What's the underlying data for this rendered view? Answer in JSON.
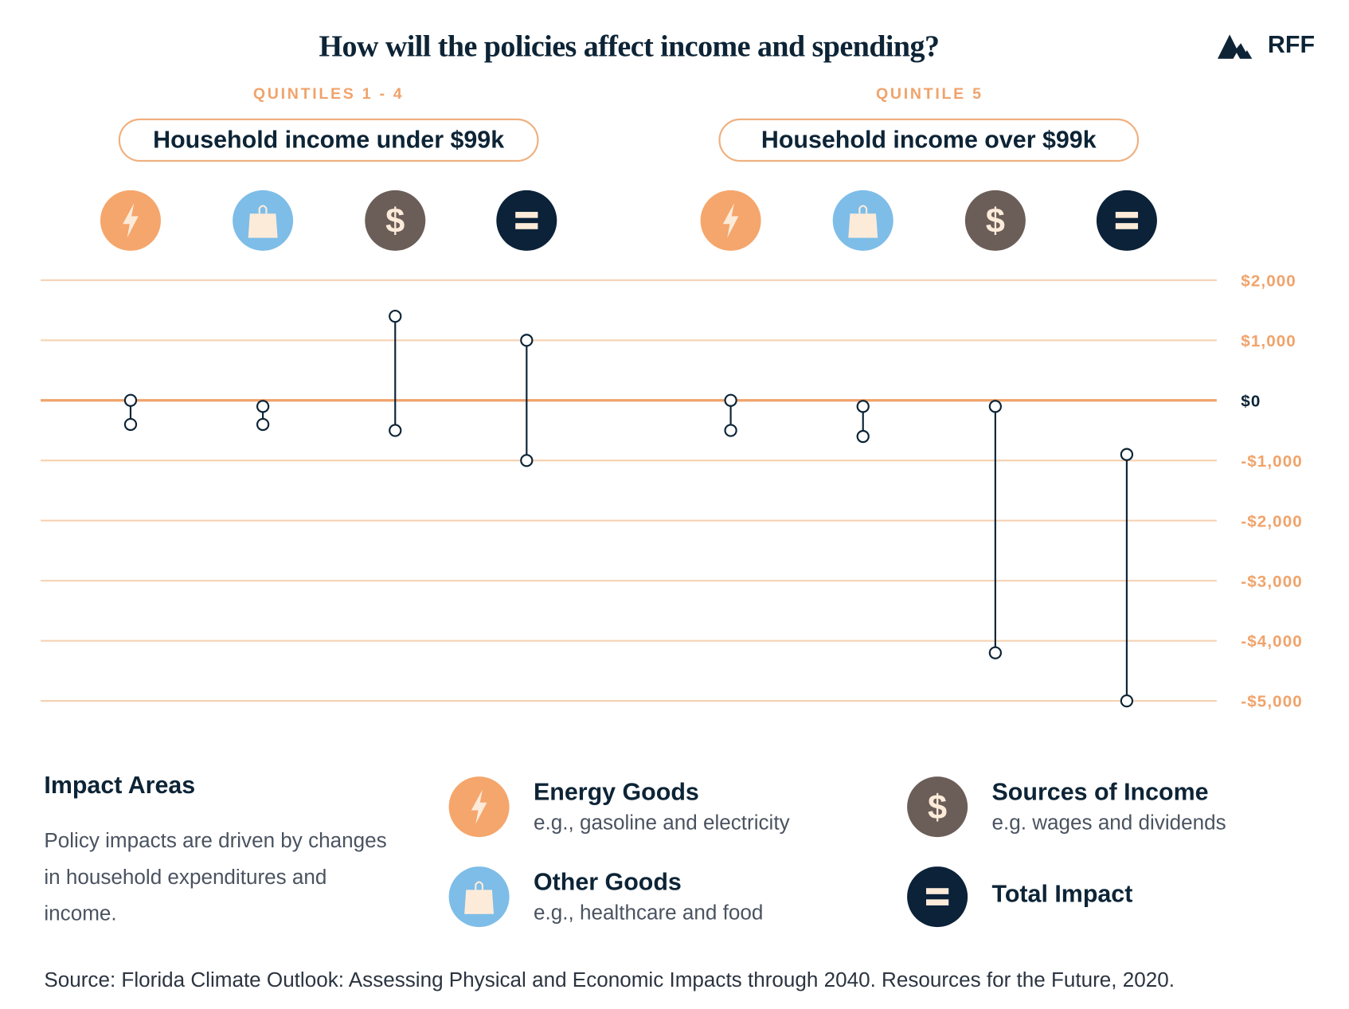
{
  "title": "How will the policies affect income and spending?",
  "logo": {
    "text": "RFF"
  },
  "groups": [
    {
      "quintile": "QUINTILES 1 - 4",
      "label": "Household income under $99k"
    },
    {
      "quintile": "QUINTILE 5",
      "label": "Household income over $99k"
    }
  ],
  "colors": {
    "energy": "#f5a66c",
    "other": "#7dbde8",
    "income": "#6b5e58",
    "total": "#0b2239",
    "grid": "#f6d2b4",
    "zero": "#f0a36b",
    "glyph": "#fdebd9"
  },
  "chart_data": {
    "type": "range",
    "ylim": [
      -5000,
      2000
    ],
    "yticks": [
      2000,
      1000,
      0,
      -1000,
      -2000,
      -3000,
      -4000,
      -5000
    ],
    "ytick_labels": [
      "$2,000",
      "$1,000",
      "$0",
      "-$1,000",
      "-$2,000",
      "-$3,000",
      "-$4,000",
      "-$5,000"
    ],
    "grid": true,
    "categories": [
      "energy-goods",
      "other-goods",
      "sources-of-income",
      "total-impact"
    ],
    "category_icons": [
      "lightning-icon",
      "shopping-bag-icon",
      "dollar-icon",
      "equals-icon"
    ],
    "series": [
      {
        "group": "QUINTILES 1 - 4",
        "ranges": [
          [
            0,
            -400
          ],
          [
            -100,
            -400
          ],
          [
            1400,
            -500
          ],
          [
            1000,
            -1000
          ]
        ]
      },
      {
        "group": "QUINTILE 5",
        "ranges": [
          [
            0,
            -500
          ],
          [
            -100,
            -600
          ],
          [
            -100,
            -4200
          ],
          [
            -900,
            -5000
          ]
        ]
      }
    ]
  },
  "legend": {
    "heading": "Impact Areas",
    "description": "Policy impacts are driven by changes in household expenditures and income.",
    "items": [
      {
        "key": "energy",
        "icon": "lightning-icon",
        "title": "Energy Goods",
        "desc": "e.g., gasoline and electricity"
      },
      {
        "key": "other",
        "icon": "shopping-bag-icon",
        "title": "Other Goods",
        "desc": "e.g., healthcare and food"
      },
      {
        "key": "income",
        "icon": "dollar-icon",
        "title": "Sources of Income",
        "desc": "e.g. wages and dividends"
      },
      {
        "key": "total",
        "icon": "equals-icon",
        "title": "Total Impact",
        "desc": ""
      }
    ]
  },
  "source": "Source: Florida Climate Outlook: Assessing Physical and Economic Impacts through 2040. Resources for the Future, 2020."
}
